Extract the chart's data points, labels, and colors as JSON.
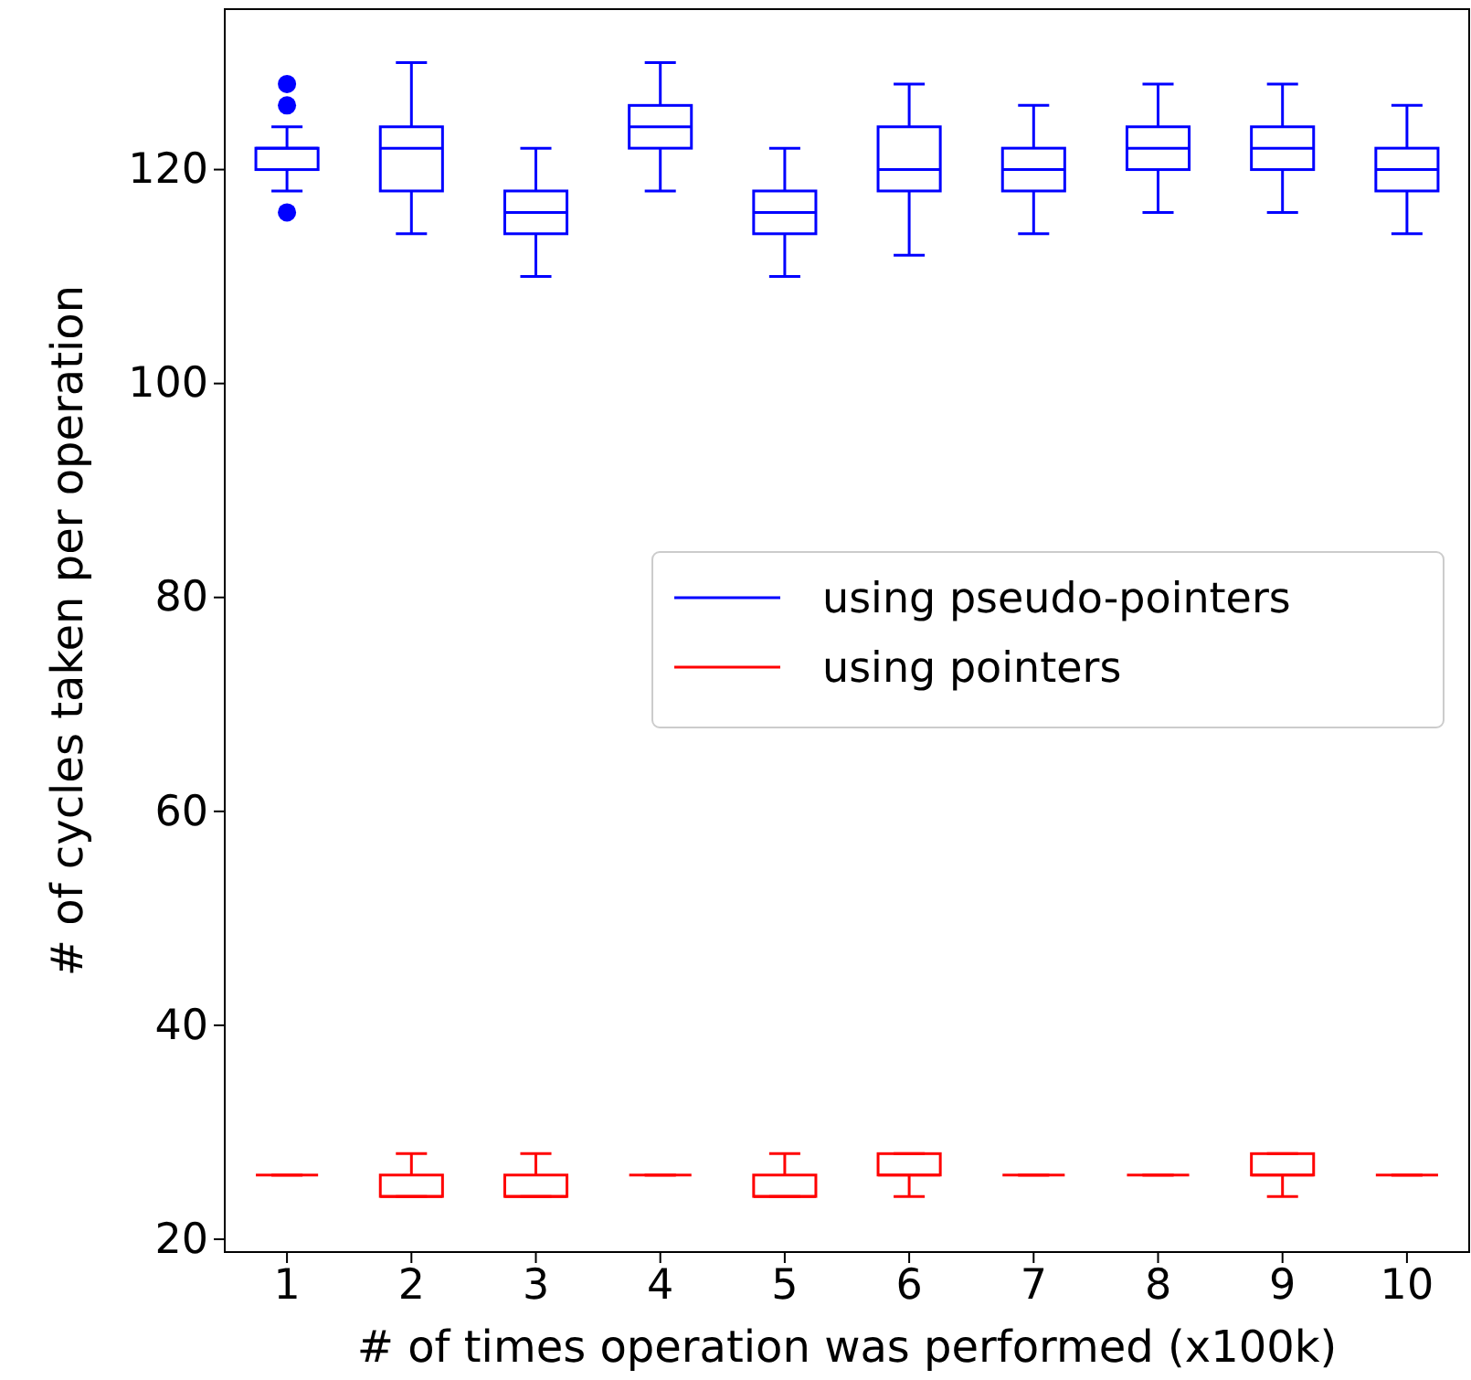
{
  "chart_data": {
    "type": "box",
    "xlabel": "# of times operation was performed (x100k)",
    "ylabel": "# of cycles taken per operation",
    "categories": [
      "1",
      "2",
      "3",
      "4",
      "5",
      "6",
      "7",
      "8",
      "9",
      "10"
    ],
    "ylim": [
      18.8,
      135
    ],
    "yticks": [
      20,
      40,
      60,
      80,
      100,
      120
    ],
    "legend": "right",
    "grid": false,
    "series": [
      {
        "name": "using pseudo-pointers",
        "color": "#0000ff",
        "boxes": [
          {
            "low": 118,
            "q1": 120,
            "median": 122,
            "q3": 122,
            "high": 124,
            "outliers": [
              126,
              128,
              116
            ]
          },
          {
            "low": 114,
            "q1": 118,
            "median": 122,
            "q3": 124,
            "high": 130
          },
          {
            "low": 110,
            "q1": 114,
            "median": 116,
            "q3": 118,
            "high": 122
          },
          {
            "low": 118,
            "q1": 122,
            "median": 124,
            "q3": 126,
            "high": 130
          },
          {
            "low": 110,
            "q1": 114,
            "median": 116,
            "q3": 118,
            "high": 122
          },
          {
            "low": 112,
            "q1": 118,
            "median": 120,
            "q3": 124,
            "high": 128
          },
          {
            "low": 114,
            "q1": 118,
            "median": 120,
            "q3": 122,
            "high": 126
          },
          {
            "low": 116,
            "q1": 120,
            "median": 122,
            "q3": 124,
            "high": 128
          },
          {
            "low": 116,
            "q1": 120,
            "median": 122,
            "q3": 124,
            "high": 128
          },
          {
            "low": 114,
            "q1": 118,
            "median": 120,
            "q3": 122,
            "high": 126
          }
        ]
      },
      {
        "name": "using pointers",
        "color": "#ff0000",
        "boxes": [
          {
            "low": 26,
            "q1": 26,
            "median": 26,
            "q3": 26,
            "high": 26
          },
          {
            "low": 24,
            "q1": 24,
            "median": 24,
            "q3": 26,
            "high": 28
          },
          {
            "low": 24,
            "q1": 24,
            "median": 24,
            "q3": 26,
            "high": 28
          },
          {
            "low": 26,
            "q1": 26,
            "median": 26,
            "q3": 26,
            "high": 26
          },
          {
            "low": 24,
            "q1": 24,
            "median": 24,
            "q3": 26,
            "high": 28
          },
          {
            "low": 24,
            "q1": 26,
            "median": 26,
            "q3": 28,
            "high": 28
          },
          {
            "low": 26,
            "q1": 26,
            "median": 26,
            "q3": 26,
            "high": 26
          },
          {
            "low": 26,
            "q1": 26,
            "median": 26,
            "q3": 26,
            "high": 26
          },
          {
            "low": 24,
            "q1": 26,
            "median": 26,
            "q3": 28,
            "high": 28
          },
          {
            "low": 26,
            "q1": 26,
            "median": 26,
            "q3": 26,
            "high": 26
          }
        ]
      }
    ]
  }
}
